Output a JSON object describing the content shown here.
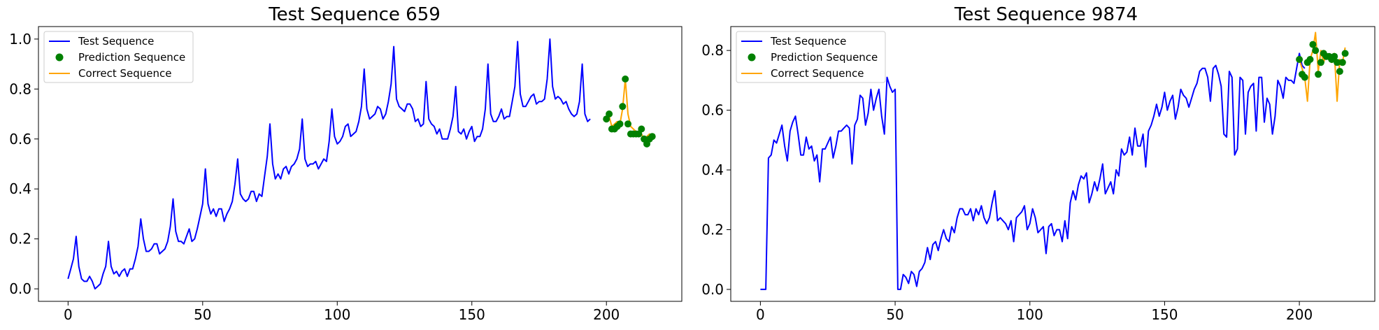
{
  "chart_data": [
    {
      "type": "line",
      "title": "Test Sequence 659",
      "xlabel": "",
      "ylabel": "",
      "xlim": [
        -11,
        228
      ],
      "ylim": [
        -0.05,
        1.05
      ],
      "xticks": [
        0,
        50,
        100,
        150,
        200
      ],
      "xtick_labels": [
        "0",
        "50",
        "100",
        "150",
        "200"
      ],
      "yticks": [
        0.0,
        0.2,
        0.4,
        0.6,
        0.8,
        1.0
      ],
      "ytick_labels": [
        "0.0",
        "0.2",
        "0.4",
        "0.6",
        "0.8",
        "1.0"
      ],
      "grid": false,
      "legend": {
        "position": "top-left",
        "entries": [
          "Test Sequence",
          "Prediction Sequence",
          "Correct Sequence"
        ]
      },
      "colors": {
        "test": "#0000ff",
        "prediction": "#008000",
        "correct": "#ffa500"
      },
      "test_sequence": {
        "name": "Test Sequence",
        "x_start": 0,
        "values": [
          0.04,
          0.08,
          0.12,
          0.21,
          0.09,
          0.04,
          0.03,
          0.03,
          0.05,
          0.03,
          0.0,
          0.01,
          0.02,
          0.06,
          0.09,
          0.19,
          0.09,
          0.06,
          0.07,
          0.05,
          0.07,
          0.08,
          0.05,
          0.08,
          0.08,
          0.12,
          0.17,
          0.28,
          0.2,
          0.15,
          0.15,
          0.16,
          0.18,
          0.18,
          0.14,
          0.15,
          0.16,
          0.19,
          0.25,
          0.36,
          0.23,
          0.19,
          0.19,
          0.18,
          0.21,
          0.24,
          0.19,
          0.2,
          0.24,
          0.29,
          0.34,
          0.48,
          0.34,
          0.3,
          0.32,
          0.29,
          0.32,
          0.32,
          0.27,
          0.3,
          0.32,
          0.35,
          0.42,
          0.52,
          0.38,
          0.36,
          0.35,
          0.36,
          0.39,
          0.39,
          0.35,
          0.38,
          0.37,
          0.45,
          0.53,
          0.66,
          0.5,
          0.44,
          0.46,
          0.44,
          0.48,
          0.49,
          0.46,
          0.49,
          0.5,
          0.52,
          0.56,
          0.68,
          0.52,
          0.49,
          0.5,
          0.5,
          0.51,
          0.48,
          0.5,
          0.52,
          0.51,
          0.59,
          0.72,
          0.61,
          0.58,
          0.59,
          0.61,
          0.65,
          0.66,
          0.61,
          0.62,
          0.63,
          0.67,
          0.73,
          0.88,
          0.72,
          0.68,
          0.69,
          0.7,
          0.73,
          0.72,
          0.68,
          0.7,
          0.75,
          0.82,
          0.97,
          0.76,
          0.73,
          0.72,
          0.71,
          0.74,
          0.74,
          0.72,
          0.67,
          0.68,
          0.65,
          0.66,
          0.83,
          0.68,
          0.66,
          0.65,
          0.62,
          0.64,
          0.6,
          0.6,
          0.6,
          0.64,
          0.69,
          0.81,
          0.63,
          0.62,
          0.64,
          0.6,
          0.63,
          0.65,
          0.59,
          0.61,
          0.61,
          0.64,
          0.72,
          0.9,
          0.7,
          0.67,
          0.67,
          0.69,
          0.72,
          0.68,
          0.69,
          0.69,
          0.75,
          0.81,
          0.99,
          0.78,
          0.73,
          0.73,
          0.75,
          0.77,
          0.78,
          0.74,
          0.75,
          0.75,
          0.76,
          0.84,
          1.0,
          0.81,
          0.76,
          0.77,
          0.76,
          0.74,
          0.75,
          0.72,
          0.7,
          0.69,
          0.7,
          0.75,
          0.9,
          0.7,
          0.67,
          0.68
        ]
      },
      "prediction_sequence": {
        "name": "Prediction Sequence",
        "x": [
          200,
          201,
          202,
          203,
          204,
          205,
          206,
          207,
          208,
          209,
          210,
          211,
          212,
          213,
          214,
          215,
          216,
          217
        ],
        "y": [
          0.68,
          0.7,
          0.64,
          0.64,
          0.65,
          0.66,
          0.73,
          0.84,
          0.66,
          0.62,
          0.62,
          0.62,
          0.62,
          0.64,
          0.6,
          0.58,
          0.6,
          0.61
        ]
      },
      "correct_sequence": {
        "name": "Correct Sequence",
        "x": [
          200,
          201,
          202,
          203,
          204,
          205,
          206,
          207,
          208,
          209,
          210,
          211,
          212,
          213,
          214,
          215,
          216,
          217
        ],
        "y": [
          0.69,
          0.69,
          0.65,
          0.66,
          0.67,
          0.66,
          0.72,
          0.84,
          0.7,
          0.65,
          0.64,
          0.63,
          0.63,
          0.62,
          0.6,
          0.61,
          0.62,
          0.6
        ]
      }
    },
    {
      "type": "line",
      "title": "Test Sequence 9874",
      "xlabel": "",
      "ylabel": "",
      "xlim": [
        -11,
        228
      ],
      "ylim": [
        -0.04,
        0.88
      ],
      "xticks": [
        0,
        50,
        100,
        150,
        200
      ],
      "xtick_labels": [
        "0",
        "50",
        "100",
        "150",
        "200"
      ],
      "yticks": [
        0.0,
        0.2,
        0.4,
        0.6,
        0.8
      ],
      "ytick_labels": [
        "0.0",
        "0.2",
        "0.4",
        "0.6",
        "0.8"
      ],
      "grid": false,
      "legend": {
        "position": "top-left",
        "entries": [
          "Test Sequence",
          "Prediction Sequence",
          "Correct Sequence"
        ]
      },
      "colors": {
        "test": "#0000ff",
        "prediction": "#008000",
        "correct": "#ffa500"
      },
      "test_sequence": {
        "name": "Test Sequence",
        "x_start": 0,
        "values": [
          0.0,
          0.0,
          0.0,
          0.44,
          0.45,
          0.5,
          0.49,
          0.52,
          0.55,
          0.48,
          0.43,
          0.53,
          0.56,
          0.58,
          0.52,
          0.45,
          0.45,
          0.51,
          0.47,
          0.48,
          0.43,
          0.45,
          0.36,
          0.47,
          0.47,
          0.49,
          0.51,
          0.44,
          0.48,
          0.53,
          0.53,
          0.54,
          0.55,
          0.54,
          0.42,
          0.55,
          0.57,
          0.65,
          0.64,
          0.55,
          0.59,
          0.67,
          0.6,
          0.64,
          0.67,
          0.58,
          0.52,
          0.71,
          0.68,
          0.66,
          0.67,
          0.0,
          0.0,
          0.05,
          0.04,
          0.02,
          0.06,
          0.05,
          0.01,
          0.06,
          0.07,
          0.09,
          0.14,
          0.1,
          0.15,
          0.16,
          0.13,
          0.17,
          0.2,
          0.17,
          0.16,
          0.21,
          0.19,
          0.24,
          0.27,
          0.27,
          0.25,
          0.25,
          0.27,
          0.23,
          0.27,
          0.25,
          0.28,
          0.24,
          0.22,
          0.24,
          0.29,
          0.33,
          0.23,
          0.24,
          0.23,
          0.22,
          0.2,
          0.23,
          0.16,
          0.24,
          0.25,
          0.26,
          0.28,
          0.2,
          0.22,
          0.27,
          0.24,
          0.19,
          0.2,
          0.21,
          0.12,
          0.21,
          0.22,
          0.18,
          0.2,
          0.2,
          0.16,
          0.23,
          0.17,
          0.29,
          0.33,
          0.3,
          0.35,
          0.38,
          0.37,
          0.39,
          0.29,
          0.32,
          0.36,
          0.33,
          0.37,
          0.42,
          0.32,
          0.34,
          0.36,
          0.32,
          0.4,
          0.38,
          0.47,
          0.45,
          0.46,
          0.51,
          0.45,
          0.54,
          0.48,
          0.48,
          0.52,
          0.41,
          0.53,
          0.55,
          0.58,
          0.62,
          0.58,
          0.61,
          0.66,
          0.6,
          0.63,
          0.65,
          0.57,
          0.61,
          0.67,
          0.65,
          0.64,
          0.61,
          0.64,
          0.67,
          0.69,
          0.73,
          0.74,
          0.74,
          0.71,
          0.63,
          0.74,
          0.75,
          0.72,
          0.68,
          0.52,
          0.51,
          0.73,
          0.71,
          0.45,
          0.47,
          0.71,
          0.7,
          0.52,
          0.66,
          0.68,
          0.69,
          0.53,
          0.71,
          0.71,
          0.56,
          0.64,
          0.62,
          0.52,
          0.58,
          0.7,
          0.68,
          0.64,
          0.71,
          0.7,
          0.7,
          0.69,
          0.74,
          0.79,
          0.75,
          0.74
        ]
      },
      "prediction_sequence": {
        "name": "Prediction Sequence",
        "x": [
          200,
          201,
          202,
          203,
          204,
          205,
          206,
          207,
          208,
          209,
          210,
          211,
          212,
          213,
          214,
          215,
          216,
          217
        ],
        "y": [
          0.77,
          0.72,
          0.71,
          0.76,
          0.77,
          0.82,
          0.8,
          0.72,
          0.76,
          0.79,
          0.78,
          0.78,
          0.77,
          0.78,
          0.76,
          0.73,
          0.76,
          0.79
        ]
      },
      "correct_sequence": {
        "name": "Correct Sequence",
        "x": [
          200,
          201,
          202,
          203,
          204,
          205,
          206,
          207,
          208,
          209,
          210,
          211,
          212,
          213,
          214,
          215,
          216,
          217
        ],
        "y": [
          0.77,
          0.74,
          0.71,
          0.63,
          0.77,
          0.8,
          0.86,
          0.73,
          0.8,
          0.76,
          0.79,
          0.77,
          0.76,
          0.79,
          0.63,
          0.77,
          0.76,
          0.81
        ]
      }
    }
  ]
}
